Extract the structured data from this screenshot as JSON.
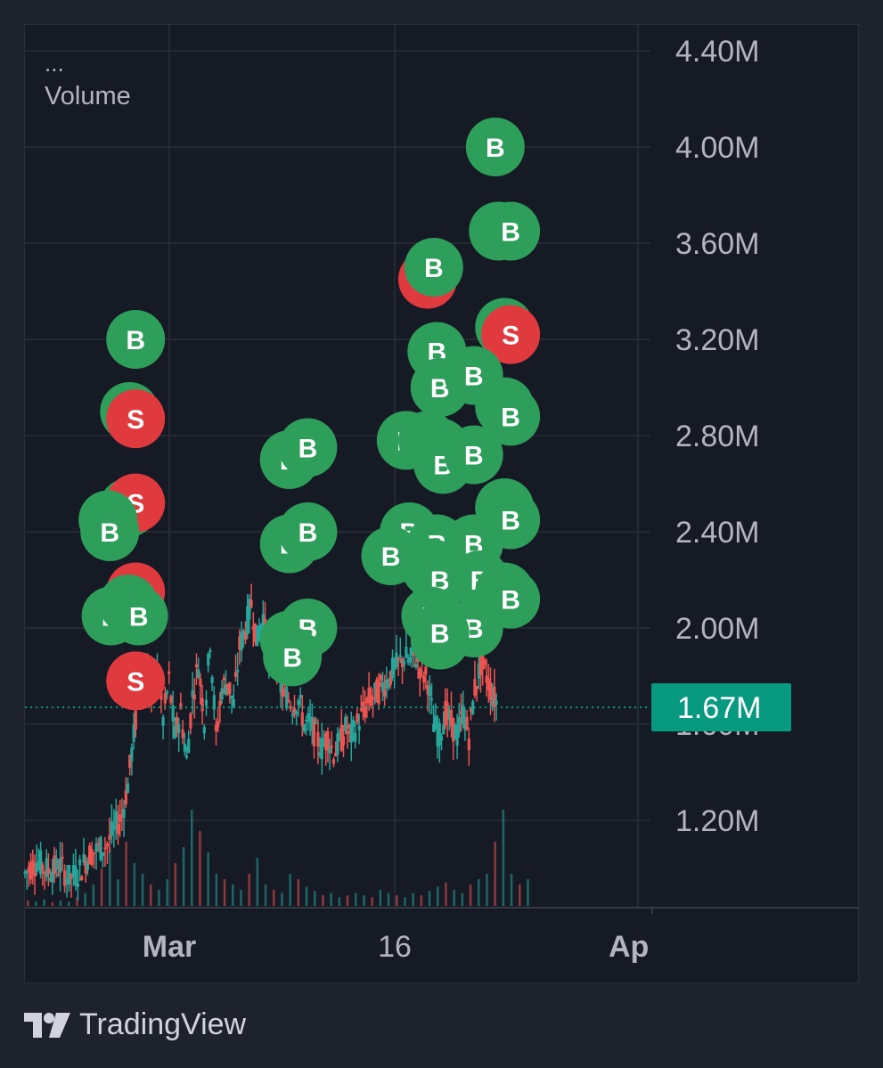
{
  "legend": {
    "menu": "...",
    "label": "Volume"
  },
  "brand": {
    "name": "TradingView"
  },
  "price_label": {
    "value": "1.67M"
  },
  "colors": {
    "up": "#26a69a",
    "down": "#ef5350",
    "buy": "#2e9e5b",
    "sell": "#e03a3e",
    "price_tag": "#089981",
    "grid": "#2a2e39",
    "axis_text": "#b2b5be"
  },
  "chart_data": {
    "type": "candlestick",
    "y_axis": {
      "ticks": [
        "4.40M",
        "4.00M",
        "3.60M",
        "3.20M",
        "2.80M",
        "2.40M",
        "2.00M",
        "1.60M",
        "1.20M"
      ],
      "tick_values": [
        4.4,
        4.0,
        3.6,
        3.2,
        2.8,
        2.4,
        2.0,
        1.6,
        1.2
      ]
    },
    "x_axis": {
      "ticks": [
        "Mar",
        "16",
        "Ap"
      ]
    },
    "last_value": 1.67,
    "price_segments": [
      [
        0,
        0.98
      ],
      [
        4,
        1.03
      ],
      [
        8,
        0.99
      ],
      [
        12,
        1.01
      ],
      [
        15,
        0.96
      ],
      [
        18,
        0.98
      ],
      [
        20,
        1.02
      ],
      [
        22,
        1.06
      ],
      [
        25,
        1.08
      ],
      [
        28,
        1.1
      ],
      [
        31,
        1.18
      ],
      [
        33,
        1.22
      ],
      [
        35,
        1.35
      ],
      [
        37,
        1.55
      ],
      [
        39,
        1.75
      ],
      [
        41,
        1.85
      ],
      [
        43,
        1.7
      ],
      [
        45,
        1.82
      ],
      [
        47,
        1.62
      ],
      [
        49,
        1.78
      ],
      [
        51,
        1.55
      ],
      [
        53,
        1.65
      ],
      [
        55,
        1.45
      ],
      [
        57,
        1.72
      ],
      [
        59,
        1.85
      ],
      [
        61,
        1.62
      ],
      [
        63,
        1.95
      ],
      [
        65,
        1.55
      ],
      [
        67,
        1.75
      ],
      [
        69,
        1.78
      ],
      [
        71,
        1.68
      ],
      [
        73,
        1.92
      ],
      [
        75,
        2.0
      ],
      [
        77,
        2.1
      ],
      [
        79,
        1.95
      ],
      [
        81,
        2.05
      ],
      [
        83,
        1.85
      ],
      [
        85,
        1.9
      ],
      [
        87,
        1.75
      ],
      [
        89,
        1.72
      ],
      [
        91,
        1.68
      ],
      [
        93,
        1.7
      ],
      [
        95,
        1.6
      ],
      [
        97,
        1.6
      ],
      [
        99,
        1.55
      ],
      [
        101,
        1.5
      ],
      [
        103,
        1.55
      ],
      [
        105,
        1.48
      ],
      [
        107,
        1.52
      ],
      [
        109,
        1.58
      ],
      [
        111,
        1.55
      ],
      [
        113,
        1.6
      ],
      [
        115,
        1.65
      ],
      [
        117,
        1.7
      ],
      [
        119,
        1.72
      ],
      [
        121,
        1.75
      ],
      [
        123,
        1.78
      ],
      [
        125,
        1.82
      ],
      [
        127,
        1.85
      ],
      [
        129,
        1.88
      ],
      [
        131,
        1.86
      ],
      [
        133,
        1.88
      ],
      [
        135,
        1.82
      ],
      [
        137,
        1.78
      ],
      [
        139,
        1.6
      ],
      [
        141,
        1.55
      ],
      [
        143,
        1.65
      ],
      [
        145,
        1.6
      ],
      [
        147,
        1.55
      ],
      [
        149,
        1.65
      ],
      [
        151,
        1.55
      ],
      [
        153,
        1.75
      ],
      [
        155,
        1.85
      ],
      [
        157,
        1.8
      ],
      [
        159,
        1.72
      ],
      [
        161,
        1.68
      ]
    ],
    "volume_heights": [
      0.05,
      0.04,
      0.06,
      0.03,
      0.05,
      0.04,
      0.08,
      0.12,
      0.2,
      0.35,
      0.55,
      0.25,
      0.6,
      0.4,
      0.3,
      0.2,
      0.15,
      0.25,
      0.4,
      0.55,
      0.9,
      0.7,
      0.5,
      0.3,
      0.25,
      0.2,
      0.15,
      0.3,
      0.45,
      0.2,
      0.15,
      0.12,
      0.3,
      0.25,
      0.18,
      0.14,
      0.1,
      0.12,
      0.08,
      0.1,
      0.12,
      0.1,
      0.08,
      0.15,
      0.12,
      0.1,
      0.08,
      0.12,
      0.1,
      0.14,
      0.18,
      0.22,
      0.15,
      0.12,
      0.2,
      0.25,
      0.3,
      0.6,
      0.9,
      0.3,
      0.2,
      0.25
    ],
    "markers": [
      {
        "type": "B",
        "x": 1.8,
        "y": 3.2
      },
      {
        "type": "B",
        "x": 1.7,
        "y": 2.9
      },
      {
        "type": "S",
        "x": 1.8,
        "y": 2.87
      },
      {
        "type": "B",
        "x": 1.68,
        "y": 2.5
      },
      {
        "type": "S",
        "x": 1.8,
        "y": 2.52
      },
      {
        "type": "B",
        "x": 1.35,
        "y": 2.45
      },
      {
        "type": "B",
        "x": 1.38,
        "y": 2.4
      },
      {
        "type": "B",
        "x": 1.4,
        "y": 2.05
      },
      {
        "type": "S",
        "x": 1.8,
        "y": 2.15
      },
      {
        "type": "B",
        "x": 1.68,
        "y": 2.1
      },
      {
        "type": "B",
        "x": 1.85,
        "y": 2.05
      },
      {
        "type": "S",
        "x": 1.8,
        "y": 1.78
      },
      {
        "type": "B",
        "x": 4.3,
        "y": 2.7
      },
      {
        "type": "B",
        "x": 4.6,
        "y": 2.75
      },
      {
        "type": "B",
        "x": 4.3,
        "y": 2.35
      },
      {
        "type": "B",
        "x": 4.6,
        "y": 2.4
      },
      {
        "type": "B",
        "x": 4.3,
        "y": 1.95
      },
      {
        "type": "B",
        "x": 4.6,
        "y": 2.0
      },
      {
        "type": "B",
        "x": 4.35,
        "y": 1.88
      },
      {
        "type": "S",
        "x": 6.55,
        "y": 3.45
      },
      {
        "type": "B",
        "x": 6.65,
        "y": 3.5
      },
      {
        "type": "B",
        "x": 7.65,
        "y": 4.0
      },
      {
        "type": "B",
        "x": 7.7,
        "y": 3.65
      },
      {
        "type": "B",
        "x": 7.9,
        "y": 3.65
      },
      {
        "type": "B",
        "x": 7.8,
        "y": 3.25
      },
      {
        "type": "S",
        "x": 7.9,
        "y": 3.22
      },
      {
        "type": "B",
        "x": 6.7,
        "y": 3.15
      },
      {
        "type": "B",
        "x": 6.75,
        "y": 3.0
      },
      {
        "type": "B",
        "x": 7.3,
        "y": 3.05
      },
      {
        "type": "B",
        "x": 7.8,
        "y": 2.92
      },
      {
        "type": "B",
        "x": 7.9,
        "y": 2.88
      },
      {
        "type": "B",
        "x": 6.2,
        "y": 2.78
      },
      {
        "type": "B",
        "x": 6.55,
        "y": 2.78
      },
      {
        "type": "B",
        "x": 6.75,
        "y": 2.75
      },
      {
        "type": "B",
        "x": 6.8,
        "y": 2.68
      },
      {
        "type": "B",
        "x": 7.3,
        "y": 2.72
      },
      {
        "type": "B",
        "x": 7.8,
        "y": 2.5
      },
      {
        "type": "B",
        "x": 7.9,
        "y": 2.45
      },
      {
        "type": "B",
        "x": 6.25,
        "y": 2.4
      },
      {
        "type": "B",
        "x": 6.7,
        "y": 2.35
      },
      {
        "type": "B",
        "x": 7.3,
        "y": 2.35
      },
      {
        "type": "B",
        "x": 5.95,
        "y": 2.3
      },
      {
        "type": "B",
        "x": 6.6,
        "y": 2.25
      },
      {
        "type": "B",
        "x": 6.75,
        "y": 2.2
      },
      {
        "type": "B",
        "x": 7.4,
        "y": 2.2
      },
      {
        "type": "B",
        "x": 7.8,
        "y": 2.15
      },
      {
        "type": "B",
        "x": 7.9,
        "y": 2.12
      },
      {
        "type": "B",
        "x": 6.6,
        "y": 2.05
      },
      {
        "type": "B",
        "x": 6.75,
        "y": 1.95
      },
      {
        "type": "B",
        "x": 7.3,
        "y": 2.0
      },
      {
        "type": "B",
        "x": 6.75,
        "y": 1.98
      }
    ]
  }
}
